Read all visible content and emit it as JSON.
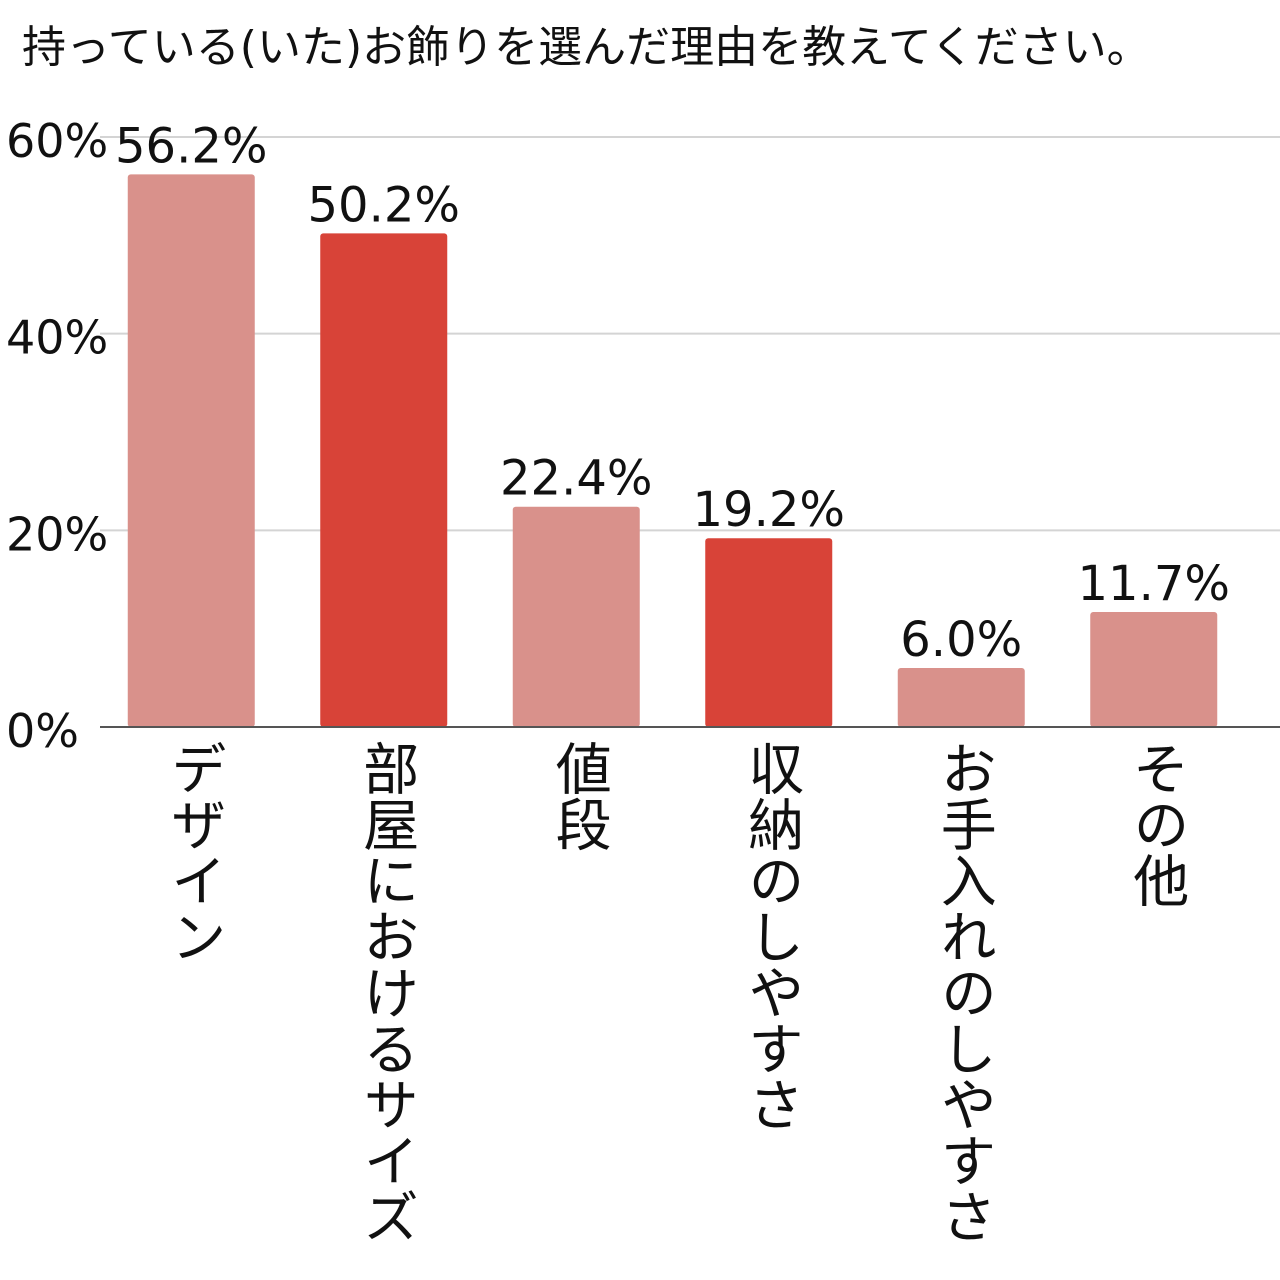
{
  "chart_data": {
    "type": "bar",
    "title": "持っている(いた)お飾りを選んだ理由を教えてください。",
    "categories": [
      "デザイン",
      "部屋におけるサイズ",
      "値段",
      "収納のしやすさ",
      "お手入れのしやすさ",
      "その他"
    ],
    "values": [
      56.2,
      50.2,
      22.4,
      19.2,
      6.0,
      11.7
    ],
    "data_labels": [
      "56.2%",
      "50.2%",
      "22.4%",
      "19.2%",
      "6.0%",
      "11.7%"
    ],
    "bar_colors": [
      "#d9918b",
      "#d84338",
      "#d9918b",
      "#d84338",
      "#d9918b",
      "#d9918b"
    ],
    "yticks": [
      0,
      20,
      40,
      60
    ],
    "ytick_labels": [
      "0%",
      "20%",
      "40%",
      "60%"
    ],
    "ylim": [
      0,
      60
    ],
    "grid": true,
    "legend": "none",
    "xlabel": "",
    "ylabel": ""
  }
}
